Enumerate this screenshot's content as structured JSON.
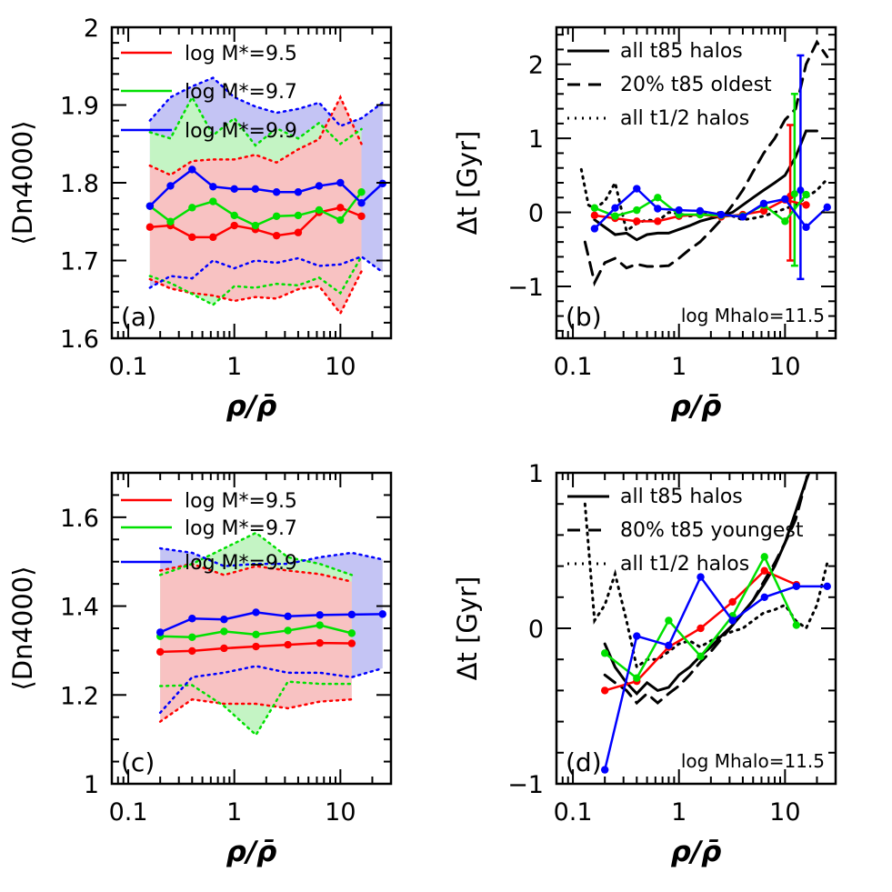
{
  "colors": {
    "red": "#ff0000",
    "green": "#00e000",
    "blue": "#0000ff",
    "black": "#000000",
    "red_fill": "#f8c2c2",
    "green_fill": "#c4f4c4",
    "blue_fill": "#c4c4f4"
  },
  "chart_data": [
    {
      "panel": "a",
      "label": "(a)",
      "type": "line",
      "xlabel": "ρ/ρ̄",
      "ylabel": "⟨Dn4000⟩",
      "xscale": "log",
      "xlim": [
        0.07,
        30
      ],
      "ylim": [
        1.6,
        2.0
      ],
      "yticks": [
        1.6,
        1.7,
        1.8,
        1.9,
        2.0
      ],
      "yticklabels": [
        "1.6",
        "1.7",
        "1.8",
        "1.9",
        "2"
      ],
      "xticks": [
        0.1,
        1,
        10
      ],
      "xticklabels": [
        "0.1",
        "1",
        "10"
      ],
      "series": [
        {
          "name": "log M*=9.5",
          "color": "red",
          "x": [
            0.16,
            0.25,
            0.4,
            0.63,
            1.0,
            1.58,
            2.5,
            4.0,
            6.3,
            10,
            15.8
          ],
          "y": [
            1.743,
            1.745,
            1.73,
            1.73,
            1.745,
            1.74,
            1.732,
            1.736,
            1.762,
            1.768,
            1.757
          ],
          "lo": [
            1.676,
            1.664,
            1.658,
            1.655,
            1.648,
            1.653,
            1.651,
            1.663,
            1.667,
            1.632,
            1.686
          ],
          "hi": [
            1.822,
            1.81,
            1.828,
            1.83,
            1.83,
            1.836,
            1.826,
            1.843,
            1.856,
            1.91,
            1.85
          ]
        },
        {
          "name": "log M*=9.7",
          "color": "green",
          "x": [
            0.16,
            0.25,
            0.4,
            0.63,
            1.0,
            1.58,
            2.5,
            4.0,
            6.3,
            10,
            15.8
          ],
          "y": [
            1.77,
            1.75,
            1.768,
            1.776,
            1.758,
            1.745,
            1.757,
            1.758,
            1.765,
            1.752,
            1.788
          ],
          "lo": [
            1.68,
            1.671,
            1.657,
            1.643,
            1.667,
            1.665,
            1.67,
            1.668,
            1.678,
            1.658,
            1.705
          ],
          "hi": [
            1.865,
            1.857,
            1.91,
            1.861,
            1.883,
            1.848,
            1.87,
            1.857,
            1.877,
            1.85,
            1.869
          ]
        },
        {
          "name": "log M*=9.9",
          "color": "blue",
          "x": [
            0.16,
            0.25,
            0.4,
            0.63,
            1.0,
            1.58,
            2.5,
            4.0,
            6.3,
            10,
            15.8,
            25
          ],
          "y": [
            1.77,
            1.796,
            1.817,
            1.795,
            1.792,
            1.792,
            1.788,
            1.788,
            1.796,
            1.8,
            1.774,
            1.799
          ],
          "lo": [
            1.665,
            1.68,
            1.677,
            1.7,
            1.69,
            1.7,
            1.697,
            1.703,
            1.693,
            1.695,
            1.705,
            1.685
          ],
          "hi": [
            1.88,
            1.91,
            1.924,
            1.935,
            1.91,
            1.898,
            1.89,
            1.895,
            1.903,
            1.873,
            1.883,
            1.903
          ]
        }
      ]
    },
    {
      "panel": "b",
      "label": "(b)",
      "note": "log Mhalo=11.5",
      "type": "line",
      "xlabel": "ρ/ρ̄",
      "ylabel": "Δt [Gyr]",
      "xscale": "log",
      "xlim": [
        0.07,
        30
      ],
      "ylim": [
        -1.7,
        2.5
      ],
      "yticks": [
        -1,
        0,
        1,
        2
      ],
      "yticklabels": [
        "−1",
        "0",
        "1",
        "2"
      ],
      "xticks": [
        0.1,
        1,
        10
      ],
      "xticklabels": [
        "0.1",
        "1",
        "10"
      ],
      "legend": [
        "all t85 halos",
        "20% t85 oldest",
        "all t1/2 halos"
      ],
      "black_lines": [
        {
          "name": "all t85 halos",
          "dash": "solid",
          "x": [
            0.16,
            0.2,
            0.25,
            0.32,
            0.4,
            0.5,
            0.63,
            0.8,
            1.0,
            1.26,
            1.58,
            2.0,
            2.5,
            3.2,
            4.0,
            5.0,
            6.3,
            8.0,
            10,
            12.6,
            15.8,
            20
          ],
          "y": [
            -0.1,
            -0.2,
            -0.3,
            -0.28,
            -0.37,
            -0.3,
            -0.28,
            -0.28,
            -0.23,
            -0.18,
            -0.12,
            -0.08,
            -0.05,
            0.0,
            0.1,
            0.2,
            0.3,
            0.4,
            0.5,
            0.75,
            1.1,
            1.1
          ]
        },
        {
          "name": "20% t85 oldest",
          "dash": "dashed",
          "x": [
            0.13,
            0.16,
            0.2,
            0.25,
            0.32,
            0.4,
            0.5,
            0.63,
            0.8,
            1.0,
            1.26,
            1.58,
            2.0,
            2.5,
            3.2,
            4.0,
            5.0,
            6.3,
            8.0,
            10,
            12.6,
            15.8,
            20,
            25
          ],
          "y": [
            -0.4,
            -0.95,
            -0.68,
            -0.62,
            -0.75,
            -0.7,
            -0.73,
            -0.73,
            -0.72,
            -0.62,
            -0.5,
            -0.4,
            -0.25,
            -0.1,
            0.1,
            0.3,
            0.55,
            0.8,
            1.0,
            1.25,
            1.4,
            2.0,
            2.3,
            2.1
          ]
        },
        {
          "name": "all t1/2 halos",
          "dash": "dotted",
          "x": [
            0.12,
            0.14,
            0.16,
            0.2,
            0.25,
            0.32,
            0.4,
            0.5,
            0.63,
            0.8,
            1.0,
            1.26,
            1.58,
            2.0,
            2.5,
            3.2,
            4.0,
            5.0,
            6.3,
            8.0,
            10,
            12.6,
            15.8,
            20,
            25
          ],
          "y": [
            0.58,
            0.1,
            0.05,
            0.15,
            0.4,
            -0.25,
            -0.15,
            -0.1,
            -0.12,
            0.0,
            -0.02,
            -0.05,
            -0.03,
            -0.02,
            0.0,
            -0.05,
            -0.1,
            -0.08,
            -0.05,
            0.0,
            0.05,
            0.1,
            0.2,
            0.3,
            0.45
          ]
        }
      ],
      "series": [
        {
          "name": "log M*=9.5",
          "color": "red",
          "x": [
            0.16,
            0.25,
            0.4,
            0.63,
            1.0,
            1.58,
            2.5,
            4.0,
            6.3,
            10,
            15.8
          ],
          "y": [
            -0.04,
            -0.08,
            -0.12,
            -0.12,
            -0.05,
            -0.03,
            -0.06,
            -0.03,
            0.02,
            0.17,
            0.1
          ],
          "err_x": 11.2,
          "err_y": 0.22,
          "err_lo": -0.65,
          "err_hi": 1.18
        },
        {
          "name": "log M*=9.7",
          "color": "green",
          "x": [
            0.16,
            0.25,
            0.4,
            0.63,
            1.0,
            1.58,
            2.5,
            4.0,
            6.3,
            10,
            15.8
          ],
          "y": [
            0.06,
            -0.05,
            0.03,
            0.2,
            -0.03,
            -0.03,
            -0.04,
            -0.05,
            0.1,
            -0.12,
            0.24
          ],
          "err_x": 12.3,
          "err_y": 0.25,
          "err_lo": -0.72,
          "err_hi": 1.6
        },
        {
          "name": "log M*=9.9",
          "color": "blue",
          "x": [
            0.16,
            0.25,
            0.4,
            0.63,
            1.0,
            1.58,
            2.5,
            4.0,
            6.3,
            10,
            15.8,
            25
          ],
          "y": [
            -0.22,
            0.06,
            0.32,
            0.05,
            0.03,
            0.02,
            -0.03,
            -0.06,
            0.12,
            0.18,
            -0.2,
            0.07
          ],
          "err_x": 14.0,
          "err_y": 0.3,
          "err_lo": -0.9,
          "err_hi": 2.12
        }
      ]
    },
    {
      "panel": "c",
      "label": "(c)",
      "type": "line",
      "xlabel": "ρ/ρ̄",
      "ylabel": "⟨Dn4000⟩",
      "xscale": "log",
      "xlim": [
        0.07,
        30
      ],
      "ylim": [
        1.0,
        1.7
      ],
      "yticks": [
        1.0,
        1.2,
        1.4,
        1.6
      ],
      "yticklabels": [
        "1",
        "1.2",
        "1.4",
        "1.6"
      ],
      "xticks": [
        0.1,
        1,
        10
      ],
      "xticklabels": [
        "0.1",
        "1",
        "10"
      ],
      "series": [
        {
          "name": "log M*=9.5",
          "color": "red",
          "x": [
            0.2,
            0.4,
            0.8,
            1.6,
            3.2,
            6.4,
            12.8
          ],
          "y": [
            1.297,
            1.299,
            1.305,
            1.309,
            1.313,
            1.317,
            1.316
          ],
          "lo": [
            1.14,
            1.19,
            1.18,
            1.18,
            1.17,
            1.185,
            1.19
          ],
          "hi": [
            1.48,
            1.495,
            1.47,
            1.49,
            1.48,
            1.472,
            1.455
          ]
        },
        {
          "name": "log M*=9.7",
          "color": "green",
          "x": [
            0.2,
            0.4,
            0.8,
            1.6,
            3.2,
            6.4,
            12.8
          ],
          "y": [
            1.332,
            1.33,
            1.343,
            1.336,
            1.345,
            1.357,
            1.339
          ],
          "lo": [
            1.22,
            1.222,
            1.175,
            1.11,
            1.23,
            1.225,
            1.225
          ],
          "hi": [
            1.47,
            1.495,
            1.53,
            1.565,
            1.51,
            1.495,
            1.47
          ]
        },
        {
          "name": "log M*=9.9",
          "color": "blue",
          "x": [
            0.2,
            0.4,
            0.8,
            1.6,
            3.2,
            6.4,
            12.8,
            25
          ],
          "y": [
            1.341,
            1.372,
            1.37,
            1.386,
            1.377,
            1.38,
            1.381,
            1.382
          ],
          "lo": [
            1.16,
            1.24,
            1.25,
            1.265,
            1.25,
            1.25,
            1.24,
            1.26
          ],
          "hi": [
            1.53,
            1.52,
            1.49,
            1.495,
            1.495,
            1.51,
            1.52,
            1.505
          ]
        }
      ]
    },
    {
      "panel": "d",
      "label": "(d)",
      "note": "log Mhalo=11.5",
      "type": "line",
      "xlabel": "ρ/ρ̄",
      "ylabel": "Δt [Gyr]",
      "xscale": "log",
      "xlim": [
        0.07,
        30
      ],
      "ylim": [
        -1.0,
        1.0
      ],
      "yticks": [
        -1,
        0,
        1
      ],
      "yticklabels": [
        "−1",
        "0",
        "1"
      ],
      "xticks": [
        0.1,
        1,
        10
      ],
      "xticklabels": [
        "0.1",
        "1",
        "10"
      ],
      "legend": [
        "all t85 halos",
        "80% t85 youngest",
        "all t1/2 halos"
      ],
      "black_lines": [
        {
          "name": "all t85 halos",
          "dash": "solid",
          "x": [
            0.2,
            0.25,
            0.32,
            0.4,
            0.5,
            0.63,
            0.8,
            1.0,
            1.26,
            1.58,
            2.0,
            2.5,
            3.2,
            4.0,
            5.0,
            6.3,
            8.0,
            10,
            12.6,
            15.8,
            18
          ],
          "y": [
            -0.1,
            -0.25,
            -0.35,
            -0.42,
            -0.35,
            -0.4,
            -0.38,
            -0.3,
            -0.25,
            -0.18,
            -0.12,
            -0.05,
            0.02,
            0.1,
            0.18,
            0.28,
            0.4,
            0.55,
            0.75,
            0.95,
            1.05
          ]
        },
        {
          "name": "80% t85 youngest",
          "dash": "dashed",
          "x": [
            0.2,
            0.25,
            0.32,
            0.4,
            0.5,
            0.63,
            0.8,
            1.0,
            1.26,
            1.58,
            2.0,
            2.5,
            3.2,
            4.0,
            5.0,
            6.3,
            8.0,
            10,
            12.6,
            15.8,
            17
          ],
          "y": [
            -0.3,
            -0.35,
            -0.4,
            -0.48,
            -0.42,
            -0.48,
            -0.42,
            -0.37,
            -0.3,
            -0.22,
            -0.15,
            -0.07,
            0.02,
            0.1,
            0.18,
            0.3,
            0.42,
            0.55,
            0.7,
            0.95,
            1.05
          ]
        },
        {
          "name": "all t1/2 halos",
          "dash": "dotted",
          "x": [
            0.13,
            0.16,
            0.2,
            0.25,
            0.32,
            0.4,
            0.5,
            0.63,
            0.8,
            1.0,
            1.26,
            1.58,
            2.0,
            2.5,
            3.2,
            4.0,
            5.0,
            6.3,
            8.0,
            10,
            12.6,
            15.8,
            20,
            25
          ],
          "y": [
            0.8,
            0.05,
            0.15,
            0.35,
            0.05,
            -0.25,
            -0.2,
            -0.2,
            -0.15,
            -0.1,
            -0.08,
            -0.12,
            -0.08,
            -0.05,
            -0.02,
            0.0,
            0.05,
            0.1,
            0.12,
            0.15,
            0.05,
            0.0,
            0.15,
            0.42
          ]
        }
      ],
      "series": [
        {
          "name": "log M*=9.5",
          "color": "red",
          "x": [
            0.2,
            0.4,
            0.8,
            1.6,
            3.2,
            6.4,
            12.8
          ],
          "y": [
            -0.4,
            -0.34,
            -0.12,
            0.0,
            0.17,
            0.37,
            0.28
          ]
        },
        {
          "name": "log M*=9.7",
          "color": "green",
          "x": [
            0.2,
            0.4,
            0.8,
            1.6,
            3.2,
            6.4,
            12.8
          ],
          "y": [
            -0.16,
            -0.32,
            0.05,
            -0.18,
            0.08,
            0.46,
            0.02
          ]
        },
        {
          "name": "log M*=9.9",
          "color": "blue",
          "x": [
            0.2,
            0.4,
            0.8,
            1.6,
            3.2,
            6.4,
            12.8,
            25
          ],
          "y": [
            -0.91,
            -0.05,
            -0.11,
            0.33,
            0.05,
            0.2,
            0.27,
            0.27
          ]
        }
      ]
    }
  ]
}
